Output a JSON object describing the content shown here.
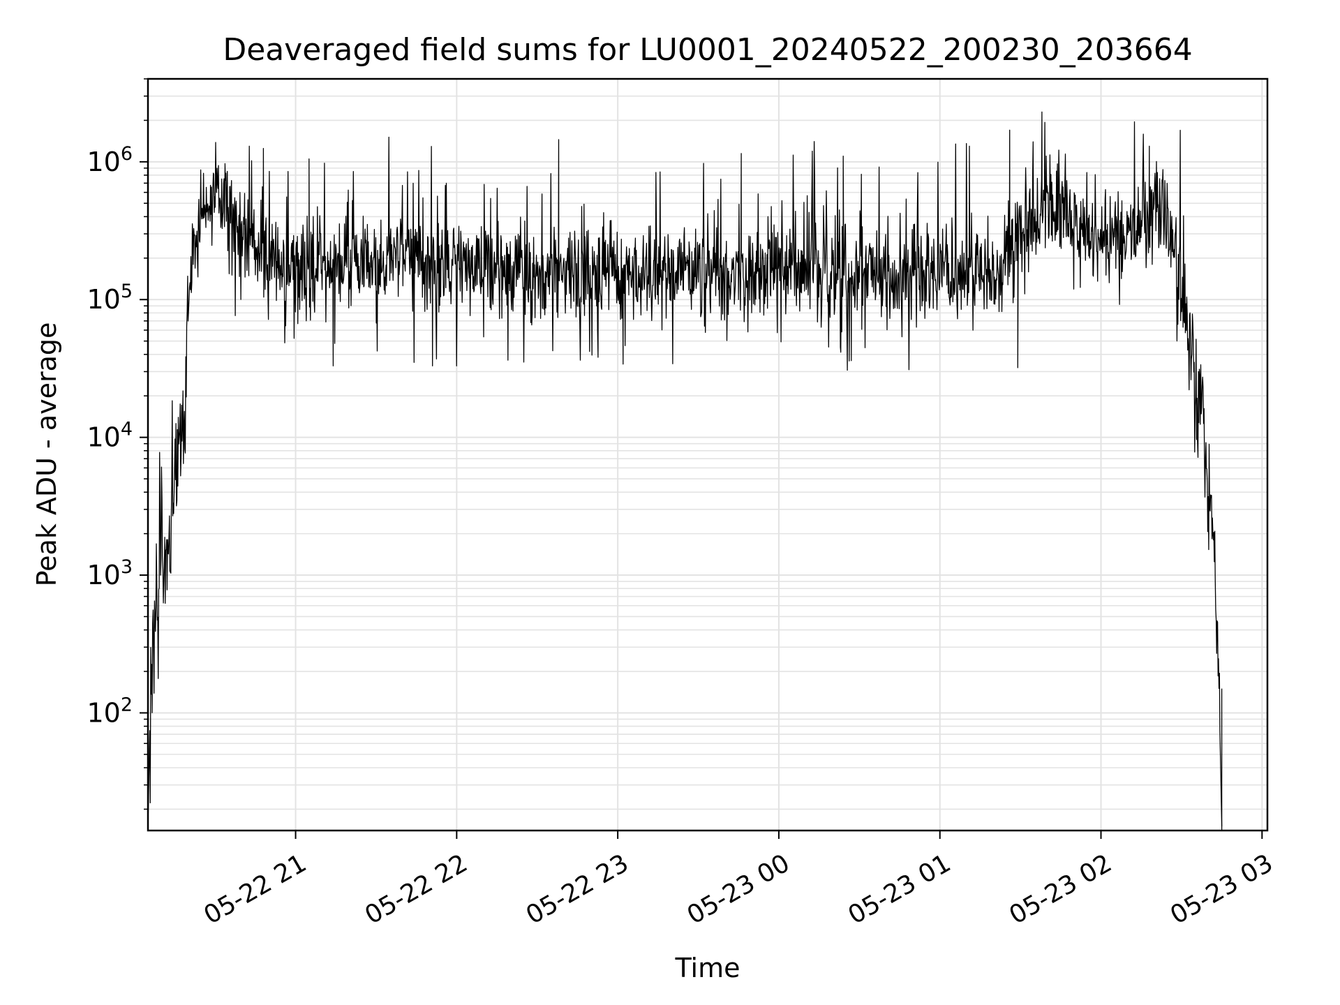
{
  "chart_data": {
    "type": "line",
    "title": "Deaveraged field sums for LU0001_20240522_200230_203664",
    "xlabel": "Time",
    "ylabel": "Peak ADU - average",
    "yscale": "log",
    "ylim": [
      14,
      4000000
    ],
    "xlim": [
      "2024-05-22 20:05",
      "2024-05-23 03:02"
    ],
    "grid": true,
    "x_ticks": [
      "05-22 21",
      "05-22 22",
      "05-22 23",
      "05-23 00",
      "05-23 01",
      "05-23 02",
      "05-23 03"
    ],
    "y_ticks": [
      {
        "base": "10",
        "exp": "2",
        "value": 100
      },
      {
        "base": "10",
        "exp": "3",
        "value": 1000
      },
      {
        "base": "10",
        "exp": "4",
        "value": 10000
      },
      {
        "base": "10",
        "exp": "5",
        "value": 100000
      },
      {
        "base": "10",
        "exp": "6",
        "value": 1000000
      }
    ],
    "series": [
      {
        "color": "#000000",
        "points": [
          [
            "2024-05-22 20:05",
            15
          ],
          [
            "2024-05-22 20:06",
            150
          ],
          [
            "2024-05-22 20:07",
            300
          ],
          [
            "2024-05-22 20:08",
            600
          ],
          [
            "2024-05-22 20:09",
            1000
          ],
          [
            "2024-05-22 20:10",
            1500
          ],
          [
            "2024-05-22 20:11",
            1200
          ],
          [
            "2024-05-22 20:12",
            1300
          ],
          [
            "2024-05-22 20:13",
            1500
          ],
          [
            "2024-05-22 20:14",
            3000
          ],
          [
            "2024-05-22 20:15",
            5000
          ],
          [
            "2024-05-22 20:16",
            7000
          ],
          [
            "2024-05-22 20:17",
            10000
          ],
          [
            "2024-05-22 20:18",
            12000
          ],
          [
            "2024-05-22 20:19",
            11000
          ],
          [
            "2024-05-22 20:20",
            100000
          ],
          [
            "2024-05-22 20:21",
            150000
          ],
          [
            "2024-05-22 20:23",
            250000
          ],
          [
            "2024-05-22 20:25",
            400000
          ],
          [
            "2024-05-22 20:28",
            600000
          ],
          [
            "2024-05-22 20:31",
            650000
          ],
          [
            "2024-05-22 20:35",
            450000
          ],
          [
            "2024-05-22 20:40",
            300000
          ],
          [
            "2024-05-22 20:50",
            200000
          ],
          [
            "2024-05-22 21:00",
            160000
          ],
          [
            "2024-05-22 21:30",
            200000
          ],
          [
            "2024-05-22 22:00",
            170000
          ],
          [
            "2024-05-22 22:30",
            150000
          ],
          [
            "2024-05-22 23:00",
            150000
          ],
          [
            "2024-05-22 23:30",
            160000
          ],
          [
            "2024-05-23 00:00",
            160000
          ],
          [
            "2024-05-23 00:30",
            150000
          ],
          [
            "2024-05-23 01:00",
            150000
          ],
          [
            "2024-05-23 01:20",
            160000
          ],
          [
            "2024-05-23 01:30",
            300000
          ],
          [
            "2024-05-23 01:40",
            500000
          ],
          [
            "2024-05-23 01:50",
            350000
          ],
          [
            "2024-05-23 02:00",
            250000
          ],
          [
            "2024-05-23 02:10",
            300000
          ],
          [
            "2024-05-23 02:20",
            500000
          ],
          [
            "2024-05-23 02:27",
            300000
          ],
          [
            "2024-05-23 02:30",
            100000
          ],
          [
            "2024-05-23 02:33",
            50000
          ],
          [
            "2024-05-23 02:36",
            20000
          ],
          [
            "2024-05-23 02:39",
            8000
          ],
          [
            "2024-05-23 02:41",
            3000
          ],
          [
            "2024-05-23 02:43",
            800
          ],
          [
            "2024-05-23 02:44",
            150
          ],
          [
            "2024-05-23 02:45",
            15
          ]
        ],
        "spikes": [
          [
            "2024-05-22 20:48",
            1250000
          ],
          [
            "2024-05-22 21:05",
            1050000
          ],
          [
            "2024-05-22 22:38",
            1450000
          ],
          [
            "2024-05-22 23:46",
            1150000
          ],
          [
            "2024-05-23 00:24",
            1100000
          ],
          [
            "2024-05-23 01:11",
            1300000
          ],
          [
            "2024-05-23 01:26",
            1700000
          ],
          [
            "2024-05-23 01:38",
            2300000
          ],
          [
            "2024-05-23 02:18",
            1300000
          ],
          [
            "2024-05-22 21:14",
            33000
          ],
          [
            "2024-05-22 21:51",
            33000
          ],
          [
            "2024-05-22 23:02",
            34000
          ],
          [
            "2024-05-23 00:27",
            36000
          ],
          [
            "2024-05-23 01:29",
            32000
          ]
        ]
      }
    ]
  }
}
